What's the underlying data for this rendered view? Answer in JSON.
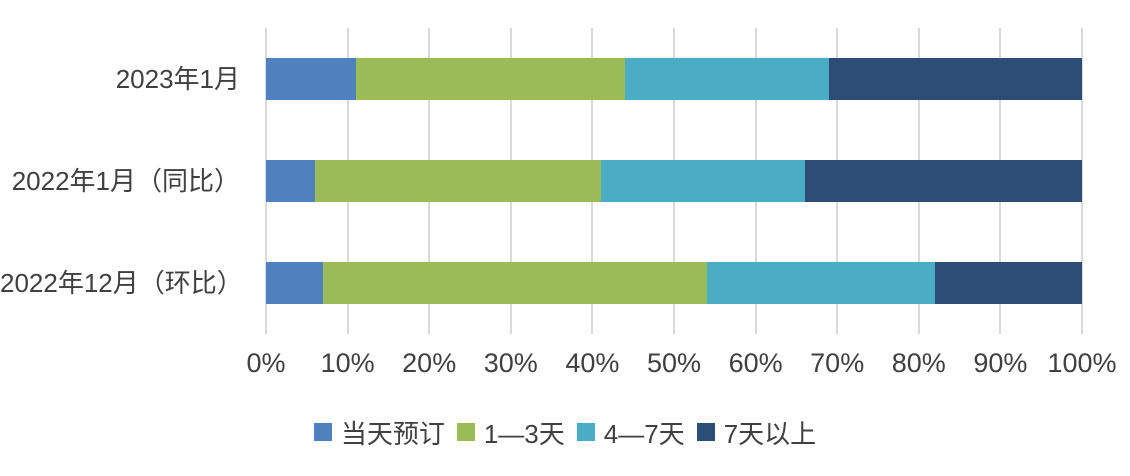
{
  "chart_data": {
    "type": "bar",
    "orientation": "horizontal",
    "stacked": true,
    "unit": "%",
    "title": "",
    "xlabel": "",
    "ylabel": "",
    "xlim": [
      0,
      100
    ],
    "grid": true,
    "legend_position": "bottom",
    "background_color": "#FFFFFF",
    "gridline_color": "#D9D9D9",
    "text_color": "#404040",
    "categories": [
      "2023年1月",
      "2022年1月（同比）",
      "2022年12月（环比）"
    ],
    "x_ticks": [
      "0%",
      "10%",
      "20%",
      "30%",
      "40%",
      "50%",
      "60%",
      "70%",
      "80%",
      "90%",
      "100%"
    ],
    "series": [
      {
        "name": "当天预订",
        "color": "#4E81BD",
        "values": [
          11,
          6,
          7
        ]
      },
      {
        "name": "1—3天",
        "color": "#9BBB59",
        "values": [
          33,
          35,
          47
        ]
      },
      {
        "name": "4—7天",
        "color": "#4BACC6",
        "values": [
          25,
          25,
          28
        ]
      },
      {
        "name": "7天以上",
        "color": "#2C4D75",
        "values": [
          31,
          34,
          18
        ]
      }
    ]
  }
}
